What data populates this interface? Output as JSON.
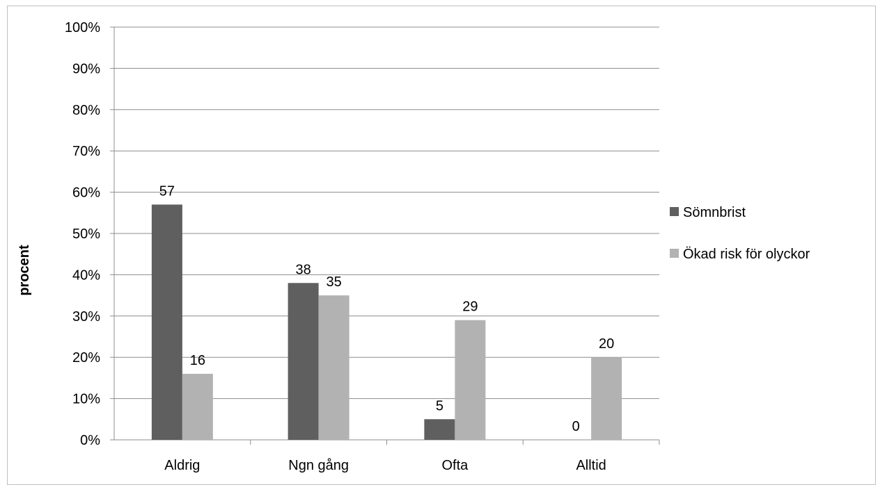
{
  "colors": {
    "series": [
      "#5f5f5f",
      "#b2b2b2"
    ],
    "grid": "#8c8c8c",
    "axis": "#8c8c8c"
  },
  "chart_data": {
    "type": "bar",
    "title": "",
    "xlabel": "",
    "ylabel": "procent",
    "ylim": [
      0,
      100
    ],
    "y_ticks": [
      "0%",
      "10%",
      "20%",
      "30%",
      "40%",
      "50%",
      "60%",
      "70%",
      "80%",
      "90%",
      "100%"
    ],
    "grid": true,
    "legend_position": "right",
    "categories": [
      "Aldrig",
      "Ngn gång",
      "Ofta",
      "Alltid"
    ],
    "series": [
      {
        "name": "Sömnbrist",
        "values": [
          57,
          38,
          5,
          0
        ]
      },
      {
        "name": "Ökad risk för olyckor",
        "values": [
          16,
          35,
          29,
          20
        ]
      }
    ]
  }
}
